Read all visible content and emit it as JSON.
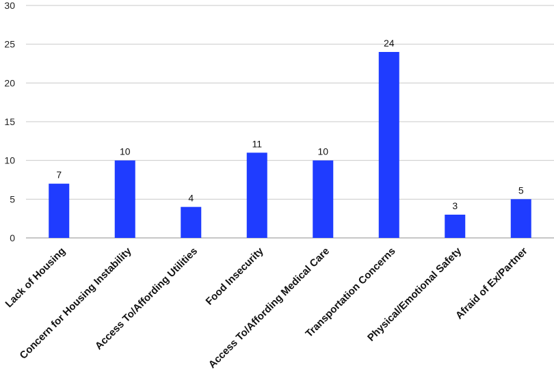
{
  "chart_data": {
    "type": "bar",
    "categories": [
      "Lack of Housing",
      "Concern for Housing Instability",
      "Access To/Affording Utilities",
      "Food Insecurity",
      "Access To/Affording Medical Care",
      "Transportation Concerns",
      "Physical/Emotional Safety",
      "Afraid of Ex/Partner"
    ],
    "values": [
      7,
      10,
      4,
      11,
      10,
      24,
      3,
      5
    ],
    "ylim": [
      0,
      30
    ],
    "yticks": [
      0,
      5,
      10,
      15,
      20,
      25,
      30
    ],
    "grid": true,
    "legend": "none",
    "bar_color": "#1f3cff"
  }
}
